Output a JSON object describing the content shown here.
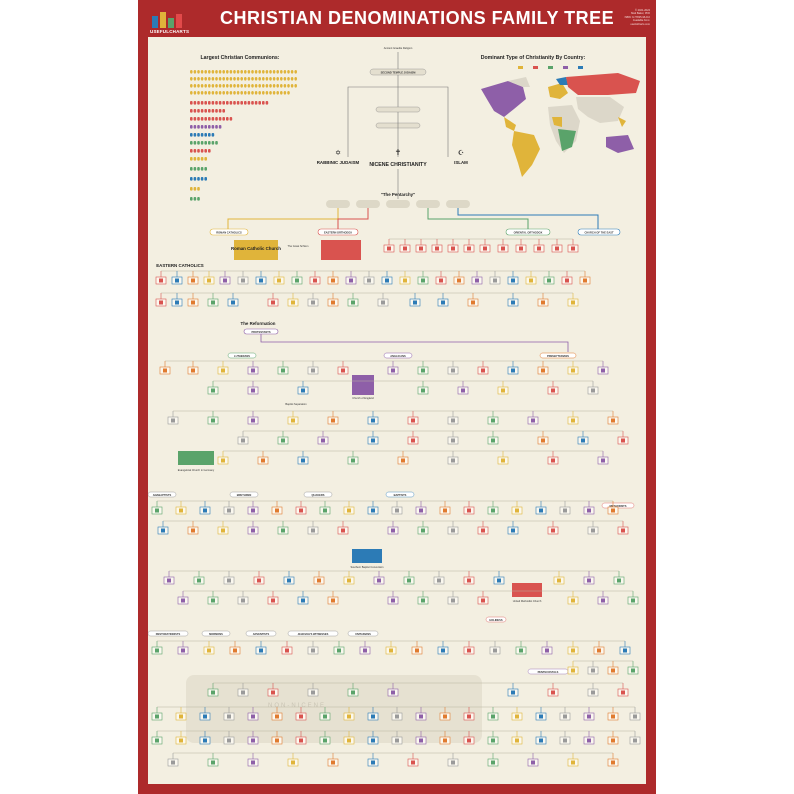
{
  "header": {
    "brand": "USEFULCHARTS",
    "title": "CHRISTIAN DENOMINATIONS FAMILY TREE",
    "copyright": [
      "© 2021-2024",
      "Matt Baker, PhD",
      "ISBN: 9-77825-96-8-0",
      "Available from:",
      "usefulcharts.com"
    ]
  },
  "sections": {
    "communions_title": "Largest Christian Communions:",
    "map_title": "Dominant Type of Christianity By Country:",
    "non_nicene": "NON-NICENE"
  },
  "nodes": {
    "ancient_israelite": "Ancient Israelite Religion",
    "second_temple": "SECOND TEMPLE JUDAISM",
    "rabbinic": "RABBINIC JUDAISM",
    "nicene": "NICENE CHRISTIANITY",
    "islam": "ISLAM",
    "pentarchy": "\"The Pentarchy\"",
    "roman_catholics": "ROMAN CATHOLICS",
    "eastern_orthodox": "EASTERN ORTHODOX",
    "oriental_orthodox": "ORIENTAL ORTHODOX",
    "church_of_east": "CHURCH OF THE EAST",
    "roman_catholic_church": "Roman Catholic Church",
    "great_schism": "The Great Schism",
    "eastern_catholics": "EASTERN CATHOLICS",
    "reformation": "The Reformation",
    "protestants": "PROTESTANTS",
    "lutherans": "LUTHERANS",
    "anglicans": "ANGLICANS",
    "presbyterians": "PRESBYTERIANS",
    "church_of_england": "Church of England",
    "evangelical_church": "Evangelical Church in Germany",
    "baptist_separation": "Baptist Separation",
    "anabaptists": "ANABAPTISTS",
    "brethren": "BRETHREN",
    "quakers": "QUAKERS",
    "baptists": "BAPTISTS",
    "methodists": "METHODISTS",
    "holiness": "HOLINESS",
    "restorationists": "RESTORATIONISTS",
    "adventists": "ADVENTISTS",
    "pentecostals": "PENTECOSTALS",
    "mormons": "MORMONS",
    "unitarians": "UNITARIANS",
    "jehovahs_witnesses": "JEHOVAH'S WITNESSES",
    "nondenominational": "NONDENOMINATIONAL",
    "united_methodist": "United Methodist Church",
    "southern_baptist": "Southern Baptist Convention",
    "quaker": "Quaker Reformed Church"
  },
  "legend_colors": {
    "catholic": "#e0b43a",
    "orthodox": "#d9534f",
    "protestant": "#8e5fa8",
    "anglican": "#2c7bb6",
    "other": "#5aa36a"
  }
}
